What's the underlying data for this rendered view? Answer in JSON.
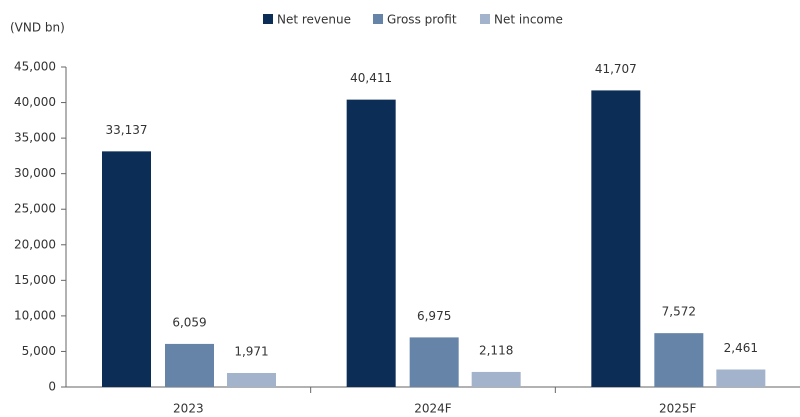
{
  "chart_data": {
    "type": "bar",
    "y_axis_label": "(VND bn)",
    "categories": [
      "2023",
      "2024F",
      "2025F"
    ],
    "series": [
      {
        "name": "Net revenue",
        "color": "#0c2d55",
        "values": [
          33137,
          40411,
          41707
        ],
        "value_labels": [
          "33,137",
          "40,411",
          "41,707"
        ]
      },
      {
        "name": "Gross profit",
        "color": "#6683a8",
        "values": [
          6059,
          6975,
          7572
        ],
        "value_labels": [
          "6,059",
          "6,975",
          "7,572"
        ]
      },
      {
        "name": "Net income",
        "color": "#a3b3cc",
        "values": [
          1971,
          2118,
          2461
        ],
        "value_labels": [
          "1,971",
          "2,118",
          "2,461"
        ]
      }
    ],
    "ylim": [
      0,
      45000
    ],
    "yticks": [
      0,
      {
        "value": 5000,
        "label": "5,000"
      },
      {
        "value": 10000,
        "label": "10,000"
      },
      {
        "value": 15000,
        "label": "15,000"
      },
      {
        "value": 20000,
        "label": "20,000"
      },
      {
        "value": 25000,
        "label": "25,000"
      },
      {
        "value": 30000,
        "label": "30,000"
      },
      {
        "value": 35000,
        "label": "35,000"
      },
      {
        "value": 40000,
        "label": "40,000"
      },
      {
        "value": 45000,
        "label": "45,000"
      }
    ],
    "legend": "top",
    "grid": false
  }
}
